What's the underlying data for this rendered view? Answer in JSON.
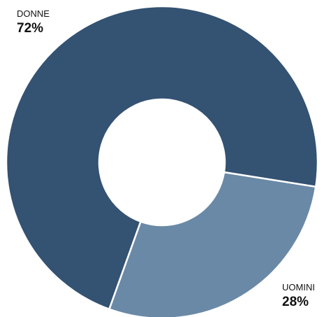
{
  "chart_data": {
    "type": "pie",
    "categories": [
      "DONNE",
      "UOMINI"
    ],
    "values": [
      72,
      28
    ],
    "value_labels": [
      "72%",
      "28%"
    ],
    "colors": [
      "#345272",
      "#6a89a6"
    ],
    "donut": true
  }
}
